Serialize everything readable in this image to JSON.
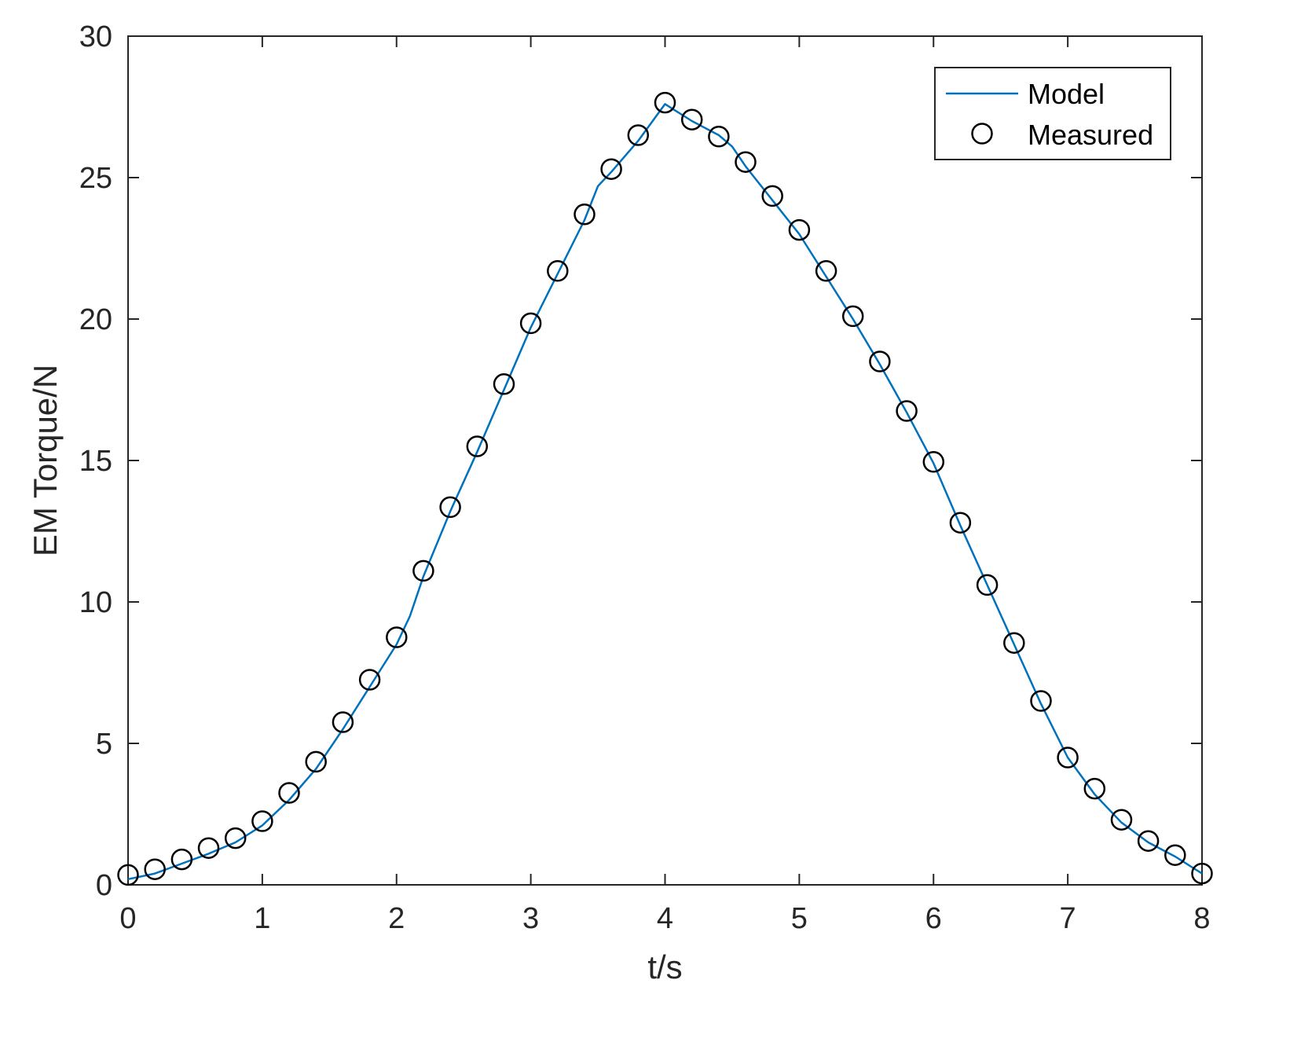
{
  "chart_data": {
    "type": "line",
    "title": "",
    "xlabel": "t/s",
    "ylabel": "EM Torque/N",
    "xlim": [
      0,
      8
    ],
    "ylim": [
      0,
      30
    ],
    "x_ticks": [
      0,
      1,
      2,
      3,
      4,
      5,
      6,
      7,
      8
    ],
    "y_ticks": [
      0,
      5,
      10,
      15,
      20,
      25,
      30
    ],
    "grid": false,
    "legend_position": "top-right",
    "colors": {
      "model_line": "#0072BD",
      "measured_marker": "#000000",
      "axes": "#262626"
    },
    "series": [
      {
        "name": "Model",
        "style": "line",
        "x": [
          0,
          0.2,
          0.4,
          0.6,
          0.8,
          1.0,
          1.2,
          1.4,
          1.6,
          1.8,
          2.0,
          2.1,
          2.2,
          2.4,
          2.6,
          2.8,
          3.0,
          3.2,
          3.4,
          3.5,
          3.6,
          3.8,
          4.0,
          4.2,
          4.4,
          4.5,
          4.6,
          4.8,
          5.0,
          5.2,
          5.4,
          5.6,
          5.8,
          6.0,
          6.2,
          6.4,
          6.6,
          6.8,
          7.0,
          7.2,
          7.4,
          7.6,
          7.8,
          8.0
        ],
        "y": [
          0.2,
          0.4,
          0.75,
          1.1,
          1.5,
          2.1,
          3.0,
          4.1,
          5.5,
          7.0,
          8.5,
          9.5,
          10.9,
          13.2,
          15.3,
          17.5,
          19.7,
          21.6,
          23.5,
          24.7,
          25.2,
          26.3,
          27.6,
          27.0,
          26.5,
          26.1,
          25.4,
          24.2,
          23.0,
          21.5,
          20.0,
          18.4,
          16.7,
          14.9,
          12.7,
          10.6,
          8.5,
          6.4,
          4.5,
          3.2,
          2.2,
          1.5,
          1.0,
          0.4
        ]
      },
      {
        "name": "Measured",
        "style": "marker-circle",
        "x": [
          0,
          0.2,
          0.4,
          0.6,
          0.8,
          1.0,
          1.2,
          1.4,
          1.6,
          1.8,
          2.0,
          2.2,
          2.4,
          2.6,
          2.8,
          3.0,
          3.2,
          3.4,
          3.6,
          3.8,
          4.0,
          4.2,
          4.4,
          4.6,
          4.8,
          5.0,
          5.2,
          5.4,
          5.6,
          5.8,
          6.0,
          6.2,
          6.4,
          6.6,
          6.8,
          7.0,
          7.2,
          7.4,
          7.6,
          7.8,
          8.0
        ],
        "y": [
          0.35,
          0.55,
          0.9,
          1.3,
          1.65,
          2.25,
          3.25,
          4.35,
          5.75,
          7.25,
          8.75,
          11.1,
          13.35,
          15.5,
          17.7,
          19.85,
          21.7,
          23.7,
          25.3,
          26.5,
          27.65,
          27.05,
          26.45,
          25.55,
          24.35,
          23.15,
          21.7,
          20.1,
          18.5,
          16.75,
          14.95,
          12.8,
          10.6,
          8.55,
          6.5,
          4.5,
          3.4,
          2.3,
          1.55,
          1.05,
          0.4
        ]
      }
    ]
  }
}
